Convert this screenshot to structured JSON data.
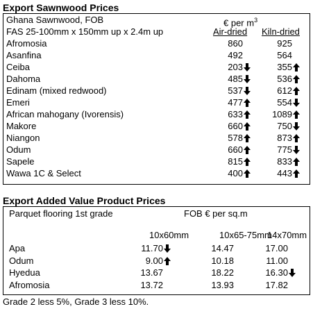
{
  "sawnwood": {
    "title": "Export Sawnwood Prices",
    "header": {
      "origin": "Ghana Sawnwood, FOB",
      "unit": "€ per m",
      "unit_sup": "3",
      "spec": "FAS 25-100mm x 150mm up x 2.4m up",
      "air": "Air-dried",
      "kiln": "Kiln-dried"
    },
    "rows": [
      {
        "name": "Afromosia",
        "air": "860",
        "kiln": "925"
      },
      {
        "name": "Asanfina",
        "air": "492",
        "kiln": "564"
      },
      {
        "name": "Ceiba",
        "air": "203",
        "air_trend": "down",
        "kiln": "355",
        "kiln_trend": "up"
      },
      {
        "name": "Dahoma",
        "air": "485",
        "air_trend": "down",
        "kiln": "536",
        "kiln_trend": "up"
      },
      {
        "name": "Edinam (mixed redwood)",
        "air": "537",
        "air_trend": "down",
        "kiln": "612",
        "kiln_trend": "up"
      },
      {
        "name": "Emeri",
        "air": "477",
        "air_trend": "up",
        "kiln": "554",
        "kiln_trend": "down"
      },
      {
        "name": "African mahogany (Ivorensis)",
        "air": "633",
        "air_trend": "up",
        "kiln": "1089",
        "kiln_trend": "up"
      },
      {
        "name": "Makore",
        "air": "660",
        "air_trend": "up",
        "kiln": "750",
        "kiln_trend": "down"
      },
      {
        "name": "Niangon",
        "air": "578",
        "air_trend": "up",
        "kiln": "873",
        "kiln_trend": "up"
      },
      {
        "name": "Odum",
        "air": "660",
        "air_trend": "up",
        "kiln": "775",
        "kiln_trend": "down"
      },
      {
        "name": "Sapele",
        "air": "815",
        "air_trend": "up",
        "kiln": "833",
        "kiln_trend": "up"
      },
      {
        "name": "Wawa 1C & Select",
        "air": "400",
        "air_trend": "up",
        "kiln": "443",
        "kiln_trend": "up"
      }
    ]
  },
  "value_added": {
    "title": "Export Added Value Product Prices",
    "header": {
      "product": "Parquet flooring 1st grade",
      "unit": "FOB € per sq.m",
      "sizes": [
        "10x60mm",
        "10x65-75mm",
        "14x70mm"
      ]
    },
    "rows": [
      {
        "name": "Apa",
        "values": [
          "11.70",
          "14.47",
          "17.00"
        ],
        "trends": [
          "down",
          null,
          null
        ]
      },
      {
        "name": "Odum",
        "values": [
          "9.00",
          "10.18",
          "11.00"
        ],
        "trends": [
          "up",
          null,
          null
        ]
      },
      {
        "name": "Hyedua",
        "values": [
          "13.67",
          "18.22",
          "16.30"
        ],
        "trends": [
          null,
          null,
          "down"
        ]
      },
      {
        "name": "Afromosia",
        "values": [
          "13.72",
          "13.93",
          "17.82"
        ],
        "trends": [
          null,
          null,
          null
        ]
      }
    ],
    "note": "Grade 2 less 5%, Grade 3 less 10%."
  }
}
